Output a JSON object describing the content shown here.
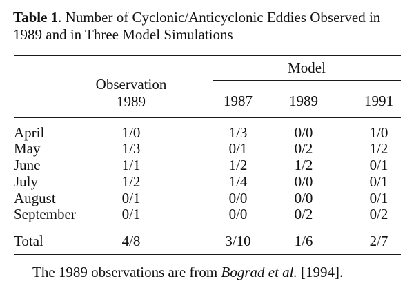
{
  "caption": {
    "label": "Table 1",
    "text": ". Number of Cyclonic/Anticyclonic Eddies Observed in 1989 and in Three Model Simulations"
  },
  "header": {
    "model_group": "Model",
    "observation_line1": "Observation",
    "observation_line2": "1989",
    "model_years": [
      "1987",
      "1989",
      "1991"
    ]
  },
  "rows": [
    {
      "month": "April",
      "observation": "1/0",
      "m1987": "1/3",
      "m1989": "0/0",
      "m1991": "1/0"
    },
    {
      "month": "May",
      "observation": "1/3",
      "m1987": "0/1",
      "m1989": "0/2",
      "m1991": "1/2"
    },
    {
      "month": "June",
      "observation": "1/1",
      "m1987": "1/2",
      "m1989": "1/2",
      "m1991": "0/1"
    },
    {
      "month": "July",
      "observation": "1/2",
      "m1987": "1/4",
      "m1989": "0/0",
      "m1991": "0/1"
    },
    {
      "month": "August",
      "observation": "0/1",
      "m1987": "0/0",
      "m1989": "0/0",
      "m1991": "0/1"
    },
    {
      "month": "September",
      "observation": "0/1",
      "m1987": "0/0",
      "m1989": "0/2",
      "m1991": "0/2"
    }
  ],
  "total": {
    "month": "Total",
    "observation": "4/8",
    "m1987": "3/10",
    "m1989": "1/6",
    "m1991": "2/7"
  },
  "footnote": {
    "before": "The 1989 observations are from ",
    "citation": "Bograd et al.",
    "after": " [1994]."
  }
}
